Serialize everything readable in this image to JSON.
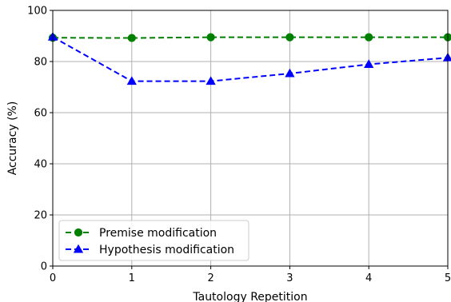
{
  "chart_data": {
    "type": "line",
    "title": "",
    "xlabel": "Tautology Repetition",
    "ylabel": "Accuracy (%)",
    "x": [
      0,
      1,
      2,
      3,
      4,
      5
    ],
    "xlim": [
      0,
      5
    ],
    "ylim": [
      0,
      100
    ],
    "xticks": [
      0,
      1,
      2,
      3,
      4,
      5
    ],
    "yticks": [
      0,
      20,
      40,
      60,
      80,
      100
    ],
    "grid": true,
    "legend_position": "lower-left",
    "series": [
      {
        "name": "Premise modification",
        "values": [
          89.3,
          89.2,
          89.5,
          89.5,
          89.5,
          89.5
        ],
        "color": "#008000",
        "marker": "circle",
        "line_style": "dashed"
      },
      {
        "name": "Hypothesis modification",
        "values": [
          89.6,
          72.3,
          72.3,
          75.3,
          78.9,
          81.5
        ],
        "color": "#0000ff",
        "marker": "triangle-up",
        "line_style": "dashed"
      }
    ]
  }
}
